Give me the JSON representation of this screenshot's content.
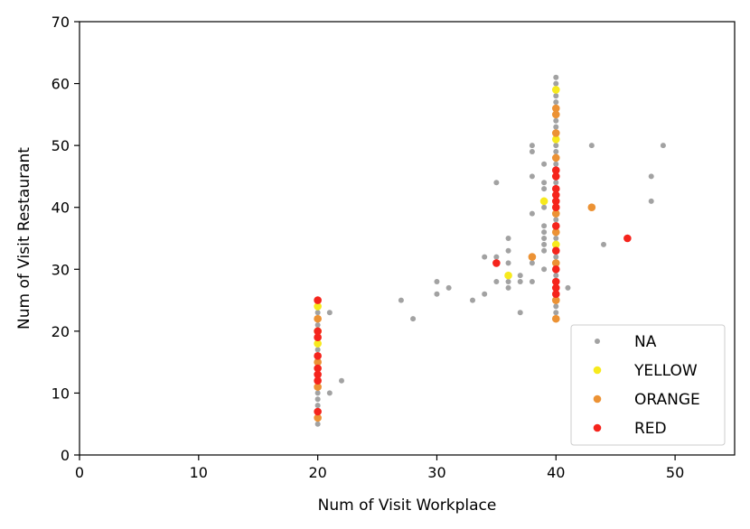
{
  "chart_data": {
    "type": "scatter",
    "title": "",
    "xlabel": "Num of Visit Workplace",
    "ylabel": "Num of Visit Restaurant",
    "xlim": [
      0,
      55
    ],
    "ylim": [
      0,
      70
    ],
    "x_ticks": [
      0,
      10,
      20,
      30,
      40,
      50
    ],
    "y_ticks": [
      0,
      10,
      20,
      30,
      40,
      50,
      60,
      70
    ],
    "grid": false,
    "legend_position": "lower-right",
    "series": [
      {
        "name": "NA",
        "color": "#555555",
        "points": [
          [
            20,
            5
          ],
          [
            20,
            6
          ],
          [
            20,
            8
          ],
          [
            20,
            9
          ],
          [
            20,
            10
          ],
          [
            20,
            11
          ],
          [
            20,
            12
          ],
          [
            20,
            13
          ],
          [
            20,
            14
          ],
          [
            20,
            15
          ],
          [
            20,
            17
          ],
          [
            20,
            19
          ],
          [
            20,
            21
          ],
          [
            20,
            22
          ],
          [
            20,
            23
          ],
          [
            20,
            24
          ],
          [
            21,
            10
          ],
          [
            21,
            23
          ],
          [
            22,
            12
          ],
          [
            27,
            25
          ],
          [
            28,
            22
          ],
          [
            30,
            26
          ],
          [
            30,
            28
          ],
          [
            31,
            27
          ],
          [
            33,
            25
          ],
          [
            34,
            26
          ],
          [
            34,
            32
          ],
          [
            35,
            28
          ],
          [
            35,
            32
          ],
          [
            35,
            44
          ],
          [
            36,
            27
          ],
          [
            36,
            28
          ],
          [
            36,
            31
          ],
          [
            36,
            33
          ],
          [
            36,
            35
          ],
          [
            37,
            23
          ],
          [
            37,
            28
          ],
          [
            37,
            29
          ],
          [
            38,
            28
          ],
          [
            38,
            31
          ],
          [
            38,
            39
          ],
          [
            38,
            45
          ],
          [
            38,
            49
          ],
          [
            38,
            50
          ],
          [
            39,
            30
          ],
          [
            39,
            33
          ],
          [
            39,
            34
          ],
          [
            39,
            35
          ],
          [
            39,
            36
          ],
          [
            39,
            37
          ],
          [
            39,
            40
          ],
          [
            39,
            43
          ],
          [
            39,
            44
          ],
          [
            39,
            47
          ],
          [
            40,
            23
          ],
          [
            40,
            24
          ],
          [
            40,
            29
          ],
          [
            40,
            32
          ],
          [
            40,
            35
          ],
          [
            40,
            38
          ],
          [
            40,
            44
          ],
          [
            40,
            47
          ],
          [
            40,
            49
          ],
          [
            40,
            50
          ],
          [
            40,
            52
          ],
          [
            40,
            53
          ],
          [
            40,
            54
          ],
          [
            40,
            57
          ],
          [
            40,
            58
          ],
          [
            40,
            60
          ],
          [
            40,
            61
          ],
          [
            41,
            27
          ],
          [
            43,
            50
          ],
          [
            44,
            34
          ],
          [
            48,
            41
          ],
          [
            48,
            45
          ],
          [
            49,
            50
          ]
        ]
      },
      {
        "name": "YELLOW",
        "color": "#f7ea1d",
        "points": [
          [
            20,
            18
          ],
          [
            20,
            20
          ],
          [
            20,
            24
          ],
          [
            36,
            29
          ],
          [
            39,
            41
          ],
          [
            40,
            34
          ],
          [
            40,
            51
          ],
          [
            40,
            59
          ]
        ]
      },
      {
        "name": "ORANGE",
        "color": "#ec9234",
        "points": [
          [
            20,
            6
          ],
          [
            20,
            11
          ],
          [
            20,
            15
          ],
          [
            20,
            22
          ],
          [
            38,
            32
          ],
          [
            40,
            22
          ],
          [
            40,
            25
          ],
          [
            40,
            31
          ],
          [
            40,
            36
          ],
          [
            40,
            39
          ],
          [
            40,
            48
          ],
          [
            40,
            52
          ],
          [
            40,
            55
          ],
          [
            40,
            56
          ],
          [
            43,
            40
          ]
        ]
      },
      {
        "name": "RED",
        "color": "#f5241c",
        "points": [
          [
            20,
            7
          ],
          [
            20,
            12
          ],
          [
            20,
            13
          ],
          [
            20,
            14
          ],
          [
            20,
            16
          ],
          [
            20,
            19
          ],
          [
            20,
            20
          ],
          [
            20,
            25
          ],
          [
            35,
            31
          ],
          [
            40,
            26
          ],
          [
            40,
            27
          ],
          [
            40,
            28
          ],
          [
            40,
            30
          ],
          [
            40,
            33
          ],
          [
            40,
            37
          ],
          [
            40,
            40
          ],
          [
            40,
            41
          ],
          [
            40,
            42
          ],
          [
            40,
            43
          ],
          [
            40,
            45
          ],
          [
            40,
            46
          ],
          [
            46,
            35
          ]
        ]
      }
    ]
  }
}
